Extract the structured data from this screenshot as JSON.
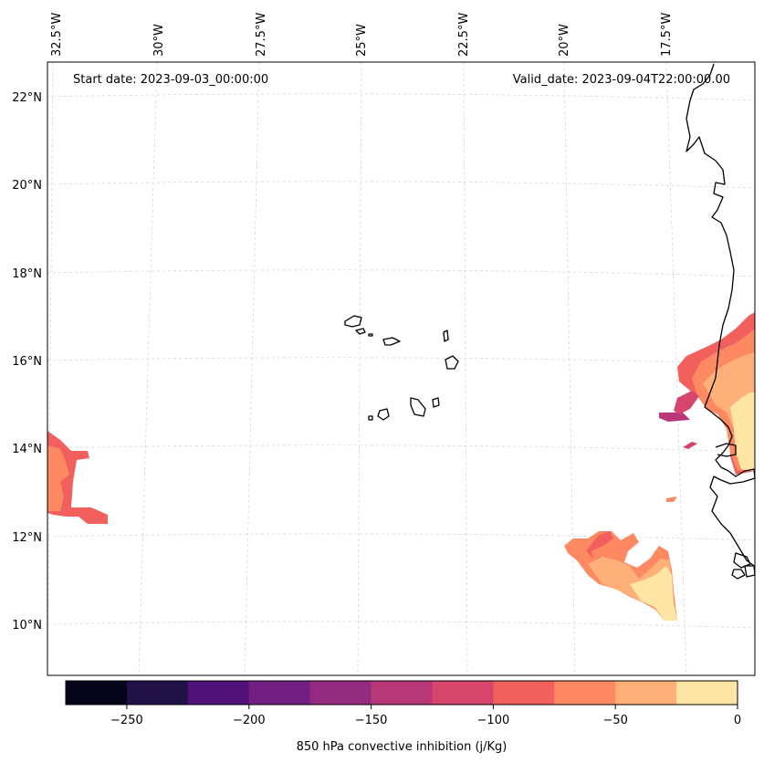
{
  "map": {
    "start_date_label": "Start date: 2023-09-03_00:00:00",
    "valid_date_label": "Valid_date: 2023-09-04T22:00:00.00",
    "longitude_labels": [
      "32.5°W",
      "30°W",
      "27.5°W",
      "25°W",
      "22.5°W",
      "20°W",
      "17.5°W"
    ],
    "latitude_labels": [
      "22°N",
      "20°N",
      "18°N",
      "16°N",
      "14°N",
      "12°N",
      "10°N"
    ]
  },
  "colorbar": {
    "label": "850 hPa convective inhibition (j/Kg)",
    "tick_labels": [
      "−250",
      "−200",
      "−150",
      "−100",
      "−50",
      "0"
    ],
    "colors": [
      "#04031a",
      "#201246",
      "#4f127b",
      "#721f81",
      "#932b80",
      "#b73779",
      "#d8456c",
      "#f1605d",
      "#fc8961",
      "#feb078",
      "#fee5a4"
    ]
  },
  "field_colors": {
    "very_low": "#b73779",
    "low": "#d8456c",
    "mid_low": "#f1605d",
    "mid": "#fc8961",
    "mid_high": "#feb078",
    "high": "#fee5a4"
  }
}
